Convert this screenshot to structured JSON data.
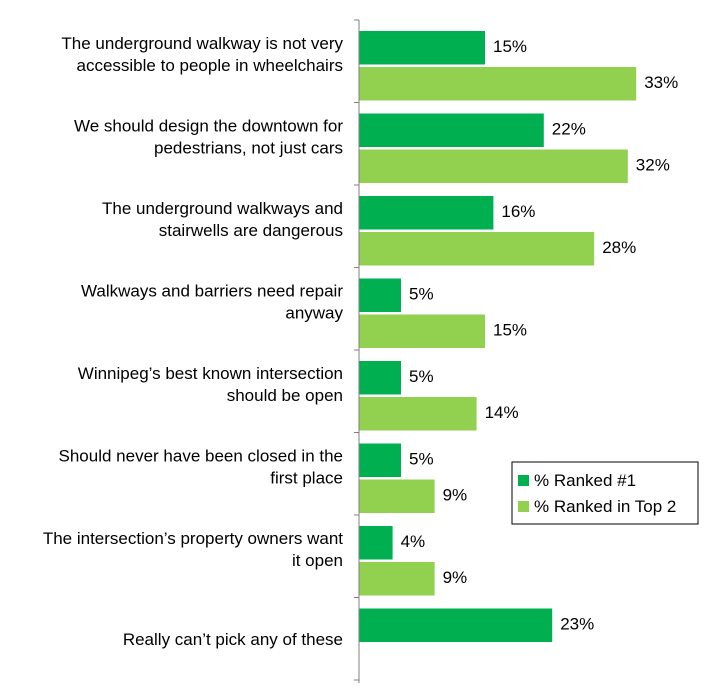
{
  "chart_data": {
    "type": "bar",
    "orientation": "horizontal",
    "categories": [
      [
        "The underground walkway is not very",
        "accessible to people in wheelchairs"
      ],
      [
        "We should design the downtown for",
        "pedestrians, not just cars"
      ],
      [
        "The underground walkways and",
        "stairwells are dangerous"
      ],
      [
        "Walkways and barriers need repair",
        "anyway"
      ],
      [
        "Winnipeg’s best known intersection",
        "should be open"
      ],
      [
        "Should never have been closed in the",
        "first place"
      ],
      [
        "The intersection’s property owners want",
        "it open"
      ],
      [
        "Really can’t pick any of these"
      ]
    ],
    "series": [
      {
        "name": "% Ranked #1",
        "color": "#00b050",
        "values": [
          15,
          22,
          16,
          5,
          5,
          5,
          4,
          23
        ],
        "labels": [
          "15%",
          "22%",
          "16%",
          "5%",
          "5%",
          "5%",
          "4%",
          "23%"
        ]
      },
      {
        "name": "% Ranked in Top 2",
        "color": "#92d050",
        "values": [
          33,
          32,
          28,
          15,
          14,
          9,
          9,
          null
        ],
        "labels": [
          "33%",
          "32%",
          "28%",
          "15%",
          "14%",
          "9%",
          "9%",
          ""
        ]
      }
    ],
    "xlim": [
      0,
      40
    ],
    "grid": false,
    "legend_position": "lower-right"
  }
}
